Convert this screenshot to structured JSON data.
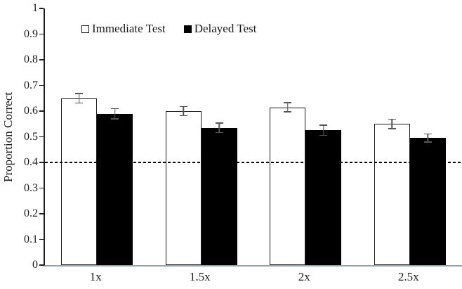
{
  "chart_data": {
    "type": "bar",
    "title": "",
    "xlabel": "",
    "ylabel": "Proportion Correct",
    "ylim": [
      0,
      1
    ],
    "ytick_step": 0.1,
    "ytick_labels": [
      "0",
      "0.1",
      "0.2",
      "0.3",
      "0.4",
      "0.5",
      "0.6",
      "0.7",
      "0.8",
      "0.9",
      "1"
    ],
    "categories": [
      "1x",
      "1.5x",
      "2x",
      "2.5x"
    ],
    "series": [
      {
        "name": "Immediate Test",
        "fill": "#ffffff",
        "border": "#1a1a1a",
        "values": [
          0.65,
          0.6,
          0.615,
          0.55
        ],
        "errors": [
          0.02,
          0.02,
          0.02,
          0.02
        ]
      },
      {
        "name": "Delayed Test",
        "fill": "#000000",
        "border": "#000000",
        "values": [
          0.59,
          0.535,
          0.525,
          0.495
        ],
        "errors": [
          0.022,
          0.02,
          0.022,
          0.018
        ]
      }
    ],
    "reference_line": {
      "y": 0.4,
      "style": "dashed",
      "color": "#000000"
    },
    "legend_position": "top",
    "grid": false
  },
  "colors": {
    "error_bar": "#555555",
    "y_axis_line": "#1f1f1f",
    "x_axis_line": "#94a2ae",
    "background": "#ffffff",
    "text": "#1a1a1a"
  }
}
